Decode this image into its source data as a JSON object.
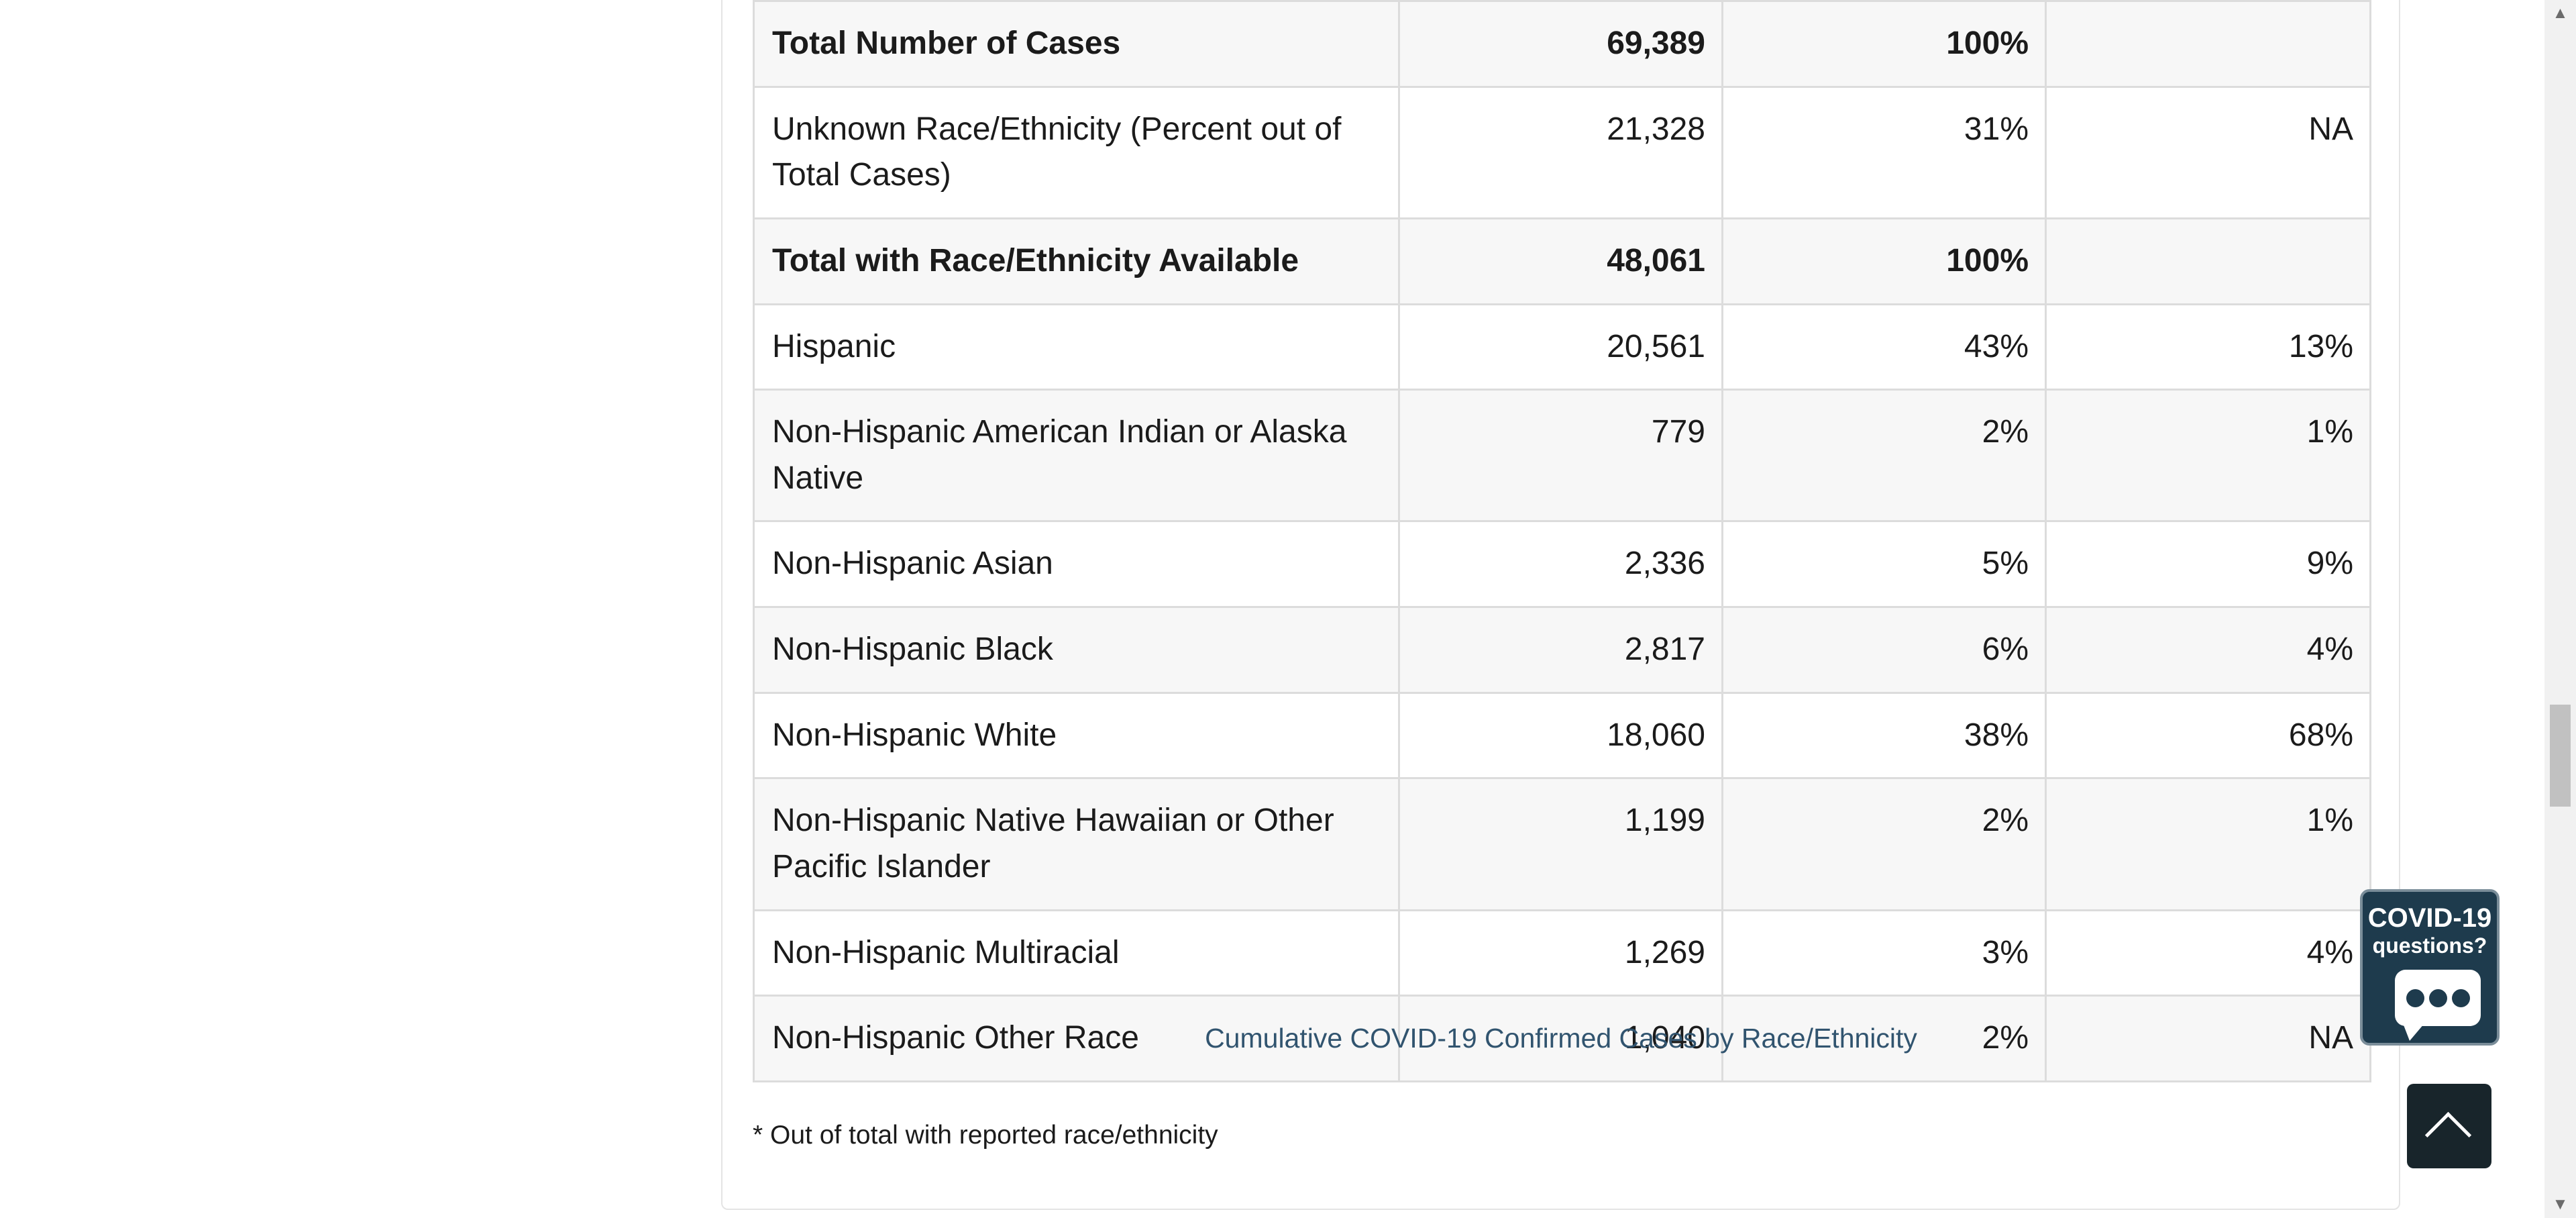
{
  "table": {
    "rows": [
      {
        "label": "Total Number of Cases",
        "count": "69,389",
        "percent": "100%",
        "population": "",
        "bold": true
      },
      {
        "label": "Unknown Race/Ethnicity (Percent out of Total Cases)",
        "count": "21,328",
        "percent": "31%",
        "population": "NA",
        "bold": false
      },
      {
        "label": "Total with Race/Ethnicity Available",
        "count": "48,061",
        "percent": "100%",
        "population": "",
        "bold": true
      },
      {
        "label": "Hispanic",
        "count": "20,561",
        "percent": "43%",
        "population": "13%",
        "bold": false
      },
      {
        "label": "Non-Hispanic American Indian or Alaska Native",
        "count": "779",
        "percent": "2%",
        "population": "1%",
        "bold": false
      },
      {
        "label": "Non-Hispanic Asian",
        "count": "2,336",
        "percent": "5%",
        "population": "9%",
        "bold": false
      },
      {
        "label": "Non-Hispanic Black",
        "count": "2,817",
        "percent": "6%",
        "population": "4%",
        "bold": false
      },
      {
        "label": "Non-Hispanic White",
        "count": "18,060",
        "percent": "38%",
        "population": "68%",
        "bold": false
      },
      {
        "label": "Non-Hispanic Native Hawaiian or Other Pacific Islander",
        "count": "1,199",
        "percent": "2%",
        "population": "1%",
        "bold": false
      },
      {
        "label": "Non-Hispanic Multiracial",
        "count": "1,269",
        "percent": "3%",
        "population": "4%",
        "bold": false
      },
      {
        "label": "Non-Hispanic Other Race",
        "count": "1,040",
        "percent": "2%",
        "population": "NA",
        "bold": false
      }
    ]
  },
  "caption": "Cumulative COVID-19 Confirmed Cases by Race/Ethnicity",
  "footnote": "* Out of total with reported race/ethnicity",
  "chat_widget": {
    "line1": "COVID-19",
    "line2": "questions?",
    "icon": "speech-bubble-icon"
  },
  "back_to_top": {
    "icon": "chevron-up-icon"
  },
  "scrollbar": {
    "position_fraction": 0.6
  },
  "colors": {
    "caption": "#31546f",
    "widget_bg": "#1e3b4d",
    "top_button_bg": "#18252b"
  }
}
